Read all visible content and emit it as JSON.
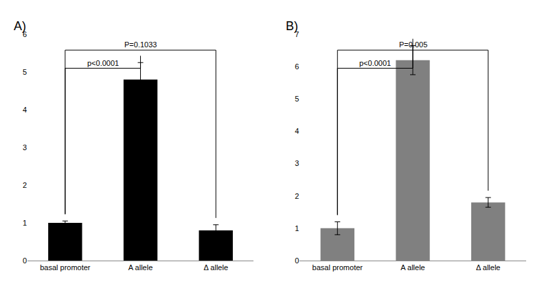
{
  "chart_data": [
    {
      "type": "bar",
      "title": "A)",
      "categories": [
        "basal promoter",
        "A allele",
        "Δ allele"
      ],
      "values": [
        1.0,
        4.8,
        0.8
      ],
      "errors": [
        0.05,
        0.45,
        0.15
      ],
      "color": "#000000",
      "ylim": [
        0,
        6
      ],
      "yticks": [
        0,
        1,
        2,
        3,
        4,
        5,
        6
      ],
      "grid": false,
      "comparisons": [
        {
          "from": 0,
          "to": 2,
          "label": "P=0.1033"
        },
        {
          "from": 0,
          "to": 1,
          "label": "p<0.0001"
        }
      ]
    },
    {
      "type": "bar",
      "title": "B)",
      "categories": [
        "basal promoter",
        "A allele",
        "Δ allele"
      ],
      "values": [
        1.0,
        6.2,
        1.8
      ],
      "errors": [
        0.2,
        0.45,
        0.15
      ],
      "color": "#808080",
      "ylim": [
        0,
        7
      ],
      "yticks": [
        0,
        1,
        2,
        3,
        4,
        5,
        6,
        7
      ],
      "grid": false,
      "comparisons": [
        {
          "from": 0,
          "to": 2,
          "label": "P=0.005"
        },
        {
          "from": 0,
          "to": 1,
          "label": "p<0.0001"
        }
      ]
    }
  ]
}
